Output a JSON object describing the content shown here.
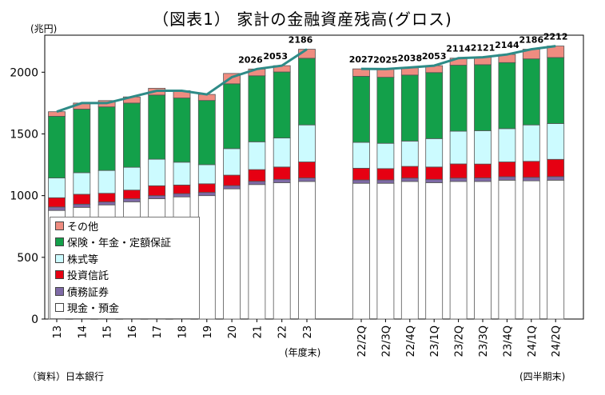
{
  "title": "（図表1） 家計の金融資産残高(グロス)",
  "unit_label": "(兆円)",
  "source_label": "（資料）日本銀行",
  "annual_note": "(年度末)",
  "quarterly_note": "(四半期末)",
  "colors": {
    "cash": "#ffffff",
    "debt": "#7e6aa6",
    "trust": "#e60012",
    "stock": "#ccfbff",
    "insurance": "#13a04a",
    "other": "#ef8c80",
    "line": "#2e8b87"
  },
  "chart_data": {
    "type": "bar",
    "stacked": true,
    "ylim": [
      0,
      2300
    ],
    "yticks": [
      0,
      500,
      1000,
      1500,
      2000
    ],
    "categories": [
      "13",
      "14",
      "15",
      "16",
      "17",
      "18",
      "19",
      "20",
      "21",
      "22",
      "23",
      "22/2Q",
      "22/3Q",
      "22/4Q",
      "23/1Q",
      "23/2Q",
      "23/3Q",
      "23/4Q",
      "24/1Q",
      "24/2Q"
    ],
    "series": [
      {
        "name": "現金・預金",
        "key": "cash",
        "values": [
          880,
          905,
          925,
          950,
          975,
          990,
          1000,
          1055,
          1090,
          1105,
          1115,
          1100,
          1100,
          1115,
          1105,
          1115,
          1115,
          1125,
          1120,
          1125
        ]
      },
      {
        "name": "債務証券",
        "key": "debt",
        "values": [
          28,
          26,
          24,
          25,
          25,
          26,
          26,
          26,
          26,
          27,
          28,
          27,
          27,
          27,
          27,
          27,
          28,
          28,
          28,
          29
        ]
      },
      {
        "name": "投資信託",
        "key": "trust",
        "values": [
          75,
          80,
          70,
          70,
          80,
          70,
          70,
          85,
          95,
          100,
          130,
          95,
          92,
          95,
          100,
          115,
          113,
          120,
          130,
          140
        ]
      },
      {
        "name": "株式等",
        "key": "stock",
        "values": [
          160,
          175,
          185,
          185,
          215,
          185,
          155,
          215,
          225,
          235,
          300,
          210,
          205,
          205,
          230,
          265,
          270,
          270,
          295,
          290
        ]
      },
      {
        "name": "保険・年金・定額保証",
        "key": "insurance",
        "values": [
          500,
          515,
          515,
          520,
          520,
          520,
          520,
          525,
          535,
          535,
          540,
          535,
          535,
          535,
          535,
          535,
          535,
          535,
          535,
          535
        ]
      },
      {
        "name": "その他",
        "key": "other",
        "values": [
          37,
          49,
          51,
          50,
          55,
          59,
          49,
          84,
          55,
          51,
          73,
          60,
          66,
          59,
          56,
          57,
          60,
          66,
          78,
          93
        ]
      }
    ],
    "total_line": [
      1680,
      1750,
      1750,
      1800,
      1850,
      1850,
      1820,
      1960,
      2026,
      2053,
      2186,
      2027,
      2025,
      2038,
      2053,
      2114,
      2121,
      2144,
      2186,
      2212
    ],
    "data_labels": [
      {
        "category": "21",
        "text": "2026"
      },
      {
        "category": "22",
        "text": "2053"
      },
      {
        "category": "23",
        "text": "2186"
      },
      {
        "category": "22/2Q",
        "text": "2027"
      },
      {
        "category": "22/3Q",
        "text": "2025"
      },
      {
        "category": "22/4Q",
        "text": "2038"
      },
      {
        "category": "23/1Q",
        "text": "2053"
      },
      {
        "category": "23/2Q",
        "text": "2114"
      },
      {
        "category": "23/3Q",
        "text": "2121"
      },
      {
        "category": "23/4Q",
        "text": "2144"
      },
      {
        "category": "24/1Q",
        "text": "2186"
      },
      {
        "category": "24/2Q",
        "text": "2212"
      }
    ],
    "legend_order": [
      "other",
      "insurance",
      "stock",
      "trust",
      "debt",
      "cash"
    ],
    "legend_position": "bottom-left inside plot"
  }
}
